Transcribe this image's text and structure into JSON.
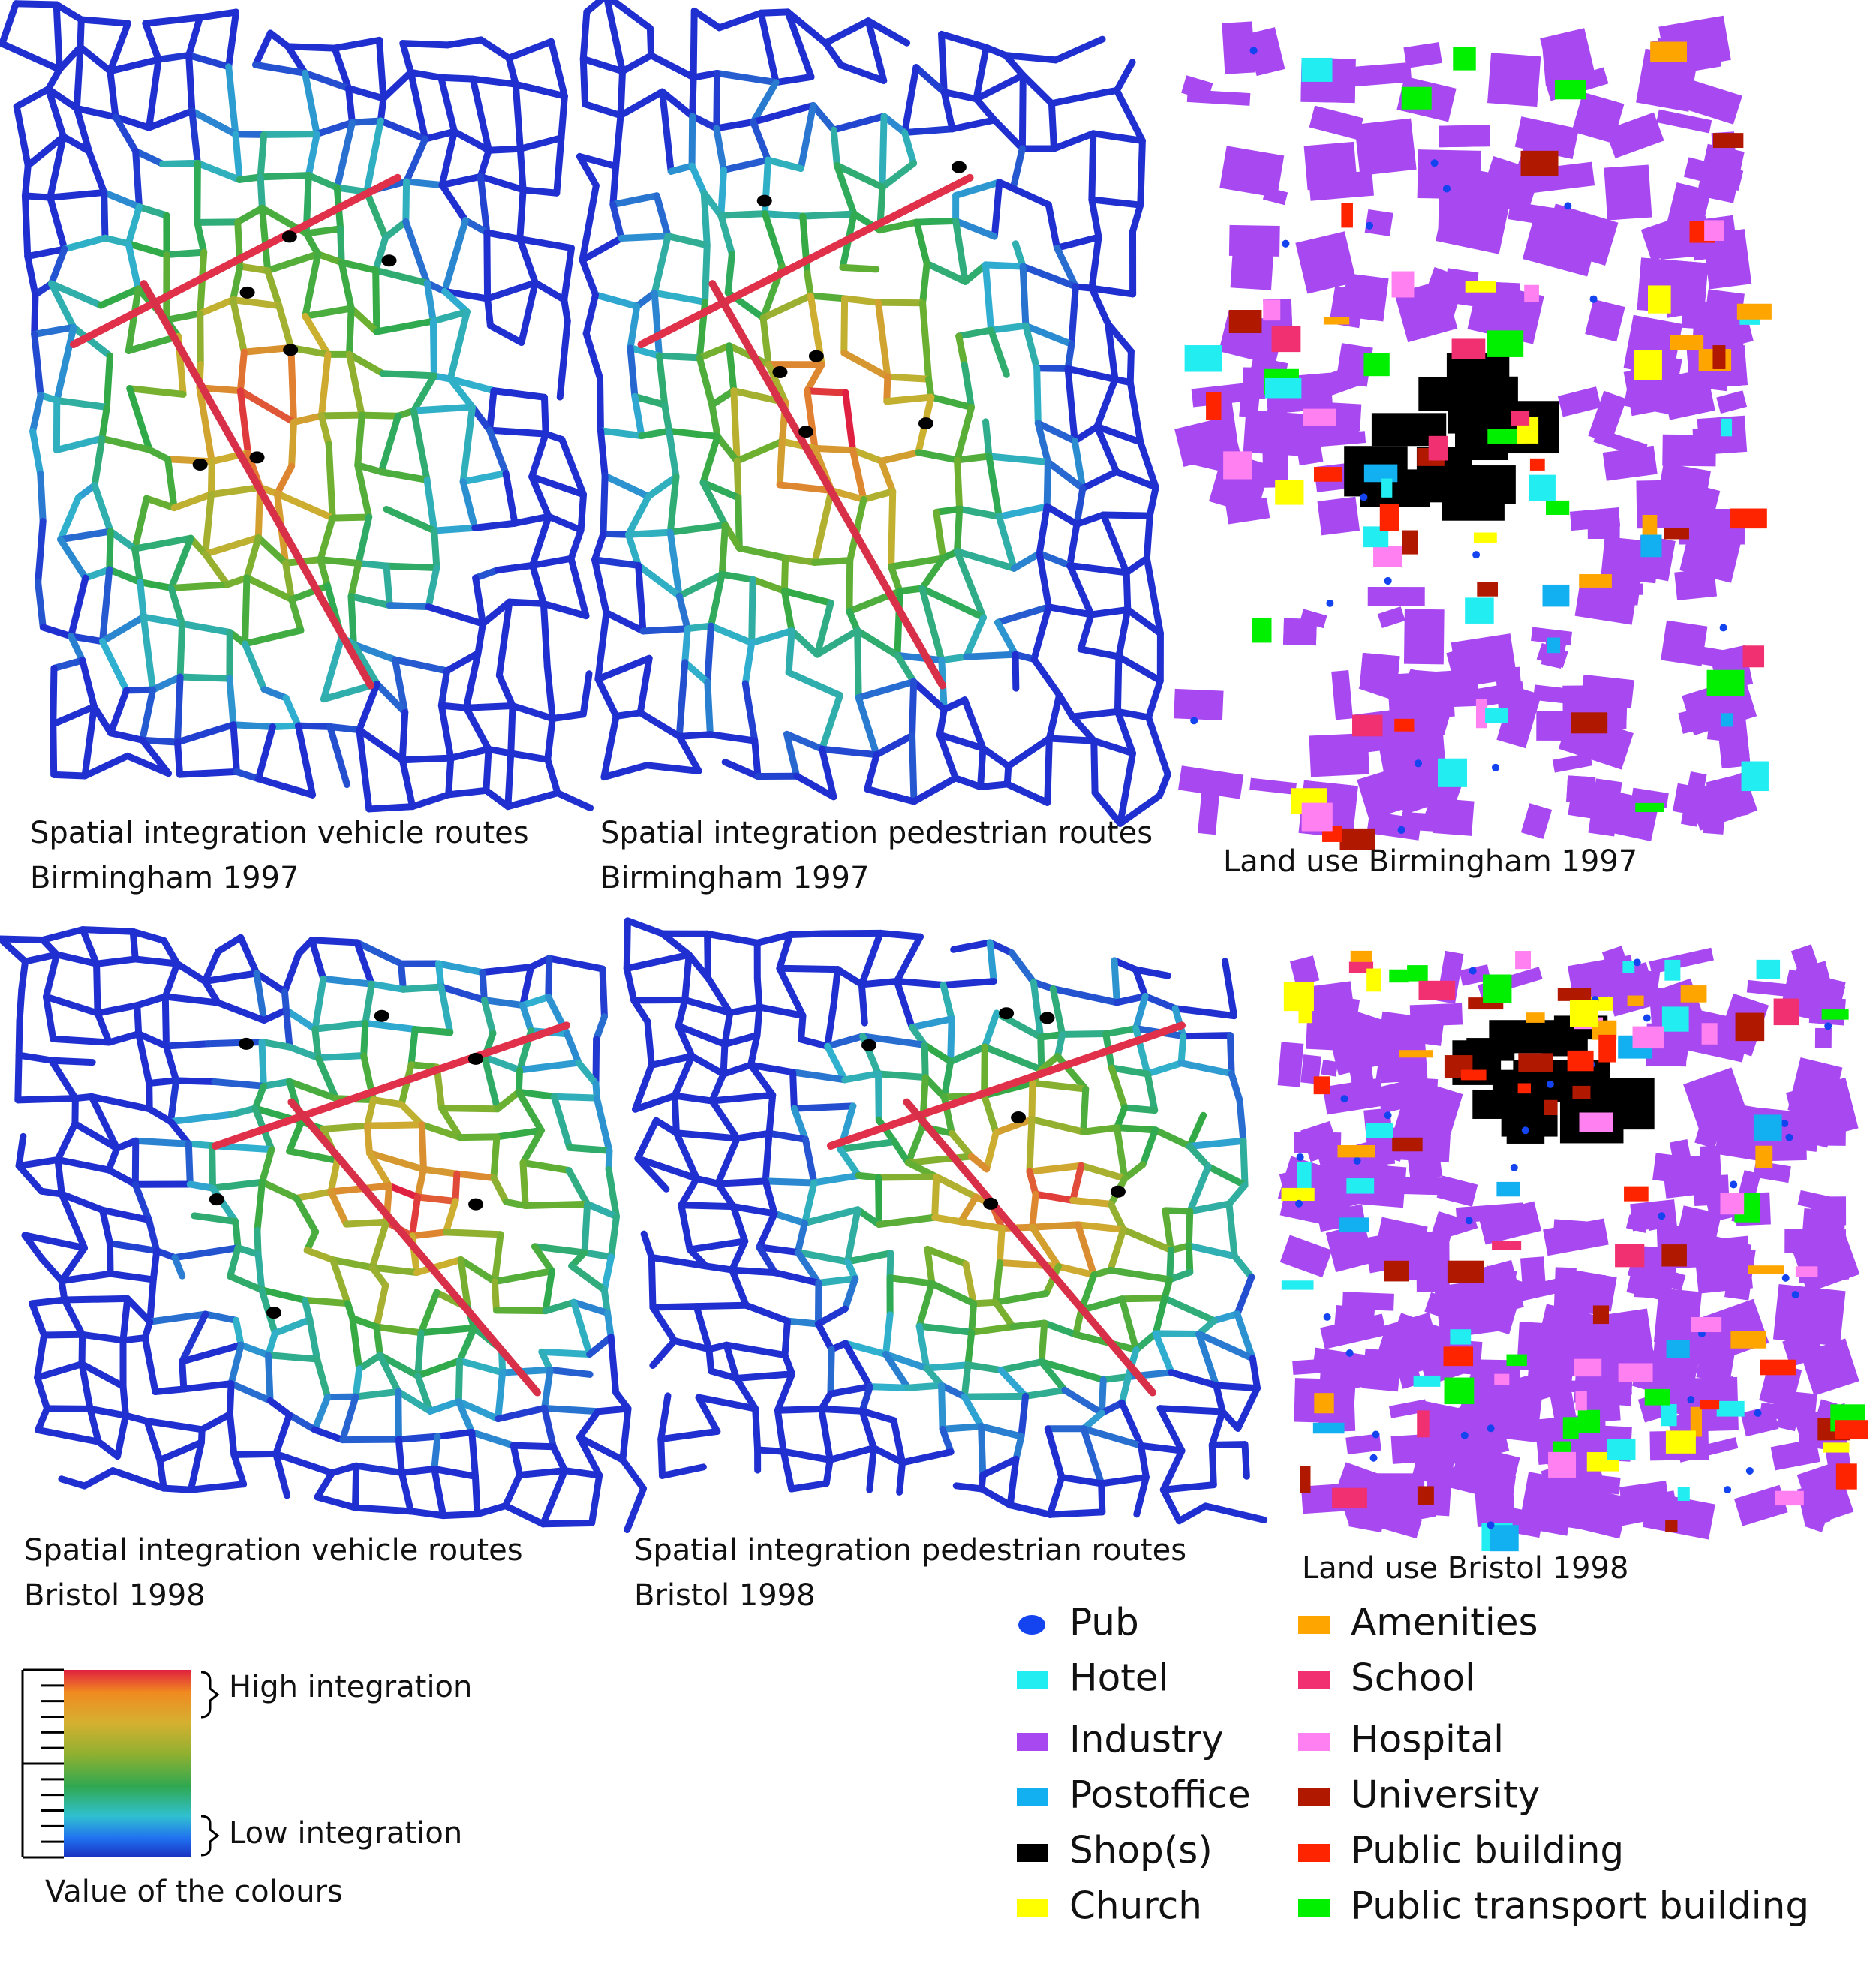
{
  "panels": [
    {
      "caption": [
        "Spatial integration vehicle routes",
        "Birmingham 1997"
      ]
    },
    {
      "caption": [
        "Spatial integration pedestrian routes",
        "Birmingham 1997"
      ]
    },
    {
      "caption": [
        "Land use Birmingham 1997"
      ]
    },
    {
      "caption": [
        "Spatial integration vehicle routes",
        "Bristol 1998"
      ]
    },
    {
      "caption": [
        "Spatial integration pedestrian routes",
        "Bristol 1998"
      ]
    },
    {
      "caption": [
        "Land use Bristol 1998"
      ]
    }
  ],
  "legend": [
    {
      "label": "Pub",
      "color": "#1444f0"
    },
    {
      "label": "Hotel",
      "color": "#22eef2"
    },
    {
      "label": "Industry",
      "color": "#a848f0"
    },
    {
      "label": "Postoffice",
      "color": "#12b0f0"
    },
    {
      "label": "Shop(s)",
      "color": "#000000"
    },
    {
      "label": "Church",
      "color": "#ffff00"
    },
    {
      "label": "Amenities",
      "color": "#ffa500"
    },
    {
      "label": "School",
      "color": "#f03070"
    },
    {
      "label": "Hospital",
      "color": "#ff80f0"
    },
    {
      "label": "University",
      "color": "#b01800"
    },
    {
      "label": "Public building",
      "color": "#ff2400"
    },
    {
      "label": "Public transport building",
      "color": "#00f000"
    }
  ],
  "colorbar": {
    "high": "High integration",
    "low": "Low integration",
    "caption": "Value of the colours"
  }
}
